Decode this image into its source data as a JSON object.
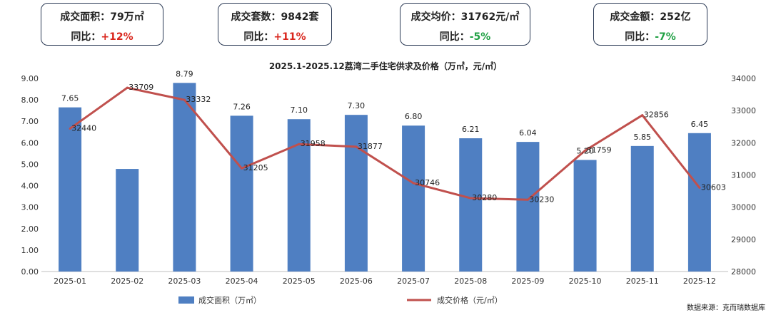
{
  "kpis": [
    {
      "title": "成交面积：79万㎡",
      "yoy_label": "同比：",
      "yoy_value": "+12%",
      "yoy_color": "#d9251c"
    },
    {
      "title": "成交套数：9842套",
      "yoy_label": "同比：",
      "yoy_value": "+11%",
      "yoy_color": "#d9251c"
    },
    {
      "title": "成交均价：31762元/㎡",
      "yoy_label": "同比：",
      "yoy_value": "-5%",
      "yoy_color": "#1fa043"
    },
    {
      "title": "成交金额：252亿",
      "yoy_label": "同比：",
      "yoy_value": "-7%",
      "yoy_color": "#1fa043"
    }
  ],
  "chart_data": {
    "type": "bar",
    "title": "2025.1-2025.12荔湾二手住宅供求及价格（万㎡，元/㎡）",
    "categories": [
      "2025-01",
      "2025-02",
      "2025-03",
      "2025-04",
      "2025-05",
      "2025-06",
      "2025-07",
      "2025-08",
      "2025-09",
      "2025-10",
      "2025-11",
      "2025-12"
    ],
    "series": [
      {
        "name": "成交面积（万㎡）",
        "type": "bar",
        "axis": "left",
        "color": "#4f7fc2",
        "values": [
          7.65,
          4.78,
          8.79,
          7.26,
          7.1,
          7.3,
          6.8,
          6.21,
          6.04,
          5.2,
          5.85,
          6.45
        ],
        "labels": [
          "7.65",
          "",
          "8.79",
          "7.26",
          "7.10",
          "7.30",
          "6.80",
          "6.21",
          "6.04",
          "5.20",
          "5.85",
          "6.45"
        ]
      },
      {
        "name": "成交价格（元/㎡）",
        "type": "line",
        "axis": "right",
        "color": "#c0504d",
        "values": [
          32440,
          33709,
          33332,
          31205,
          31958,
          31877,
          30746,
          30280,
          30230,
          31759,
          32856,
          30603
        ],
        "labels": [
          "32440",
          "33709",
          "33332",
          "31205",
          "31958",
          "31877",
          "30746",
          "30280",
          "30230",
          "31759",
          "32856",
          "30603"
        ]
      }
    ],
    "y_left": {
      "min": 0,
      "max": 9,
      "ticks": [
        "0.00",
        "1.00",
        "2.00",
        "3.00",
        "4.00",
        "5.00",
        "6.00",
        "7.00",
        "8.00",
        "9.00"
      ]
    },
    "y_right": {
      "min": 28000,
      "max": 34000,
      "ticks": [
        "28000",
        "29000",
        "30000",
        "31000",
        "32000",
        "33000",
        "34000"
      ]
    },
    "grid": false,
    "legend_position": "bottom"
  },
  "source": "数据来源：克而瑞数据库"
}
